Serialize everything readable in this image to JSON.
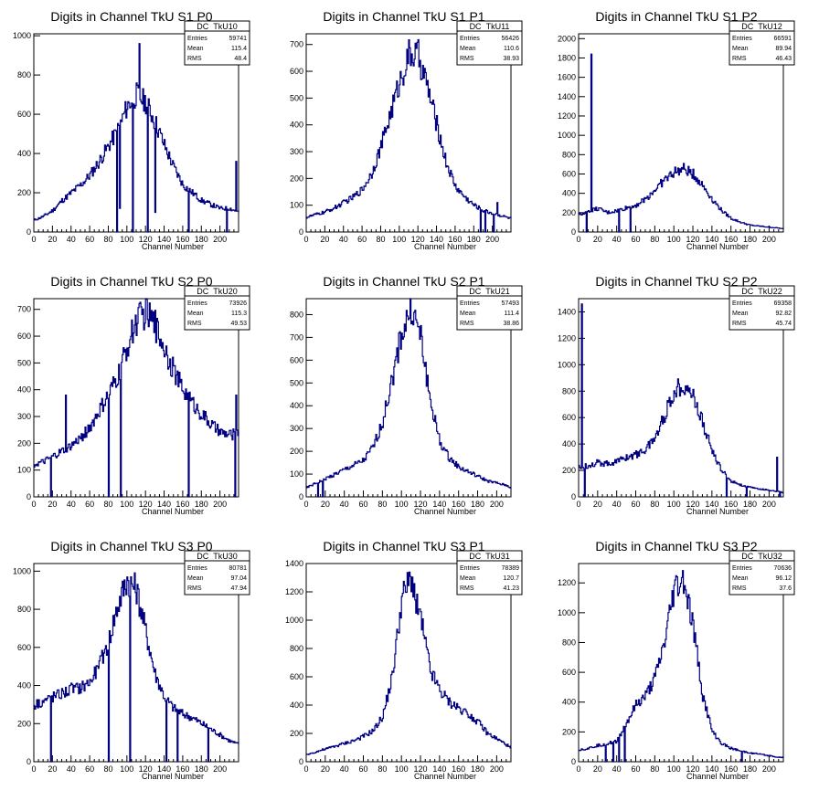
{
  "chart_data": [
    {
      "type": "bar",
      "title": "Digits in Channel TkU S1 P0",
      "xlabel": "Channel Number",
      "ylabel": "",
      "xlim": [
        0,
        220
      ],
      "ylim": [
        0,
        1010
      ],
      "xticks": [
        0,
        20,
        40,
        60,
        80,
        100,
        120,
        140,
        160,
        180,
        200
      ],
      "yticks": [
        200,
        400,
        600,
        800,
        1000
      ],
      "stats": {
        "name": "DC_TkU10",
        "entries": "59741",
        "mean": "115.4",
        "rms": "48.4"
      },
      "x": [
        0,
        10,
        20,
        30,
        40,
        50,
        60,
        70,
        80,
        90,
        100,
        110,
        120,
        130,
        140,
        150,
        160,
        170,
        180,
        190,
        200,
        210,
        220
      ],
      "values": [
        60,
        80,
        110,
        160,
        200,
        240,
        290,
        360,
        440,
        520,
        640,
        700,
        660,
        560,
        440,
        330,
        240,
        200,
        160,
        140,
        120,
        120,
        100
      ],
      "dips": [
        [
          89,
          0
        ],
        [
          92,
          120
        ],
        [
          106,
          0
        ],
        [
          113,
          960
        ],
        [
          122,
          0
        ],
        [
          130,
          100
        ],
        [
          166,
          0
        ],
        [
          207,
          0
        ],
        [
          217,
          360
        ]
      ]
    },
    {
      "type": "bar",
      "title": "Digits in Channel TkU S1 P1",
      "xlabel": "Channel Number",
      "ylabel": "",
      "xlim": [
        0,
        220
      ],
      "ylim": [
        0,
        740
      ],
      "xticks": [
        0,
        20,
        40,
        60,
        80,
        100,
        120,
        140,
        160,
        180,
        200
      ],
      "yticks": [
        100,
        200,
        300,
        400,
        500,
        600,
        700
      ],
      "stats": {
        "name": "DC_TkU11",
        "entries": "56426",
        "mean": "110.6",
        "rms": "38.93"
      },
      "x": [
        0,
        10,
        20,
        30,
        40,
        50,
        60,
        70,
        80,
        90,
        100,
        110,
        120,
        130,
        140,
        150,
        160,
        170,
        180,
        190,
        200,
        210,
        220
      ],
      "values": [
        55,
        65,
        75,
        90,
        110,
        130,
        160,
        220,
        320,
        440,
        560,
        660,
        660,
        540,
        400,
        260,
        170,
        130,
        100,
        80,
        70,
        60,
        50
      ],
      "dips": [
        [
          187,
          0
        ],
        [
          192,
          0
        ],
        [
          201,
          0
        ],
        [
          205,
          110
        ]
      ]
    },
    {
      "type": "bar",
      "title": "Digits in Channel TkU S1 P2",
      "xlabel": "Channel Number",
      "ylabel": "",
      "xlim": [
        0,
        215
      ],
      "ylim": [
        0,
        2050
      ],
      "xticks": [
        0,
        20,
        40,
        60,
        80,
        100,
        120,
        140,
        160,
        180,
        200
      ],
      "yticks": [
        200,
        400,
        600,
        800,
        1000,
        1200,
        1400,
        1600,
        1800,
        2000
      ],
      "stats": {
        "name": "DC_TkU12",
        "entries": "66591",
        "mean": "89.94",
        "rms": "46.43"
      },
      "x": [
        0,
        10,
        20,
        30,
        40,
        50,
        60,
        70,
        80,
        90,
        100,
        110,
        120,
        130,
        140,
        150,
        160,
        170,
        180,
        190,
        200,
        210,
        215
      ],
      "values": [
        180,
        220,
        240,
        200,
        220,
        250,
        280,
        340,
        440,
        540,
        620,
        650,
        600,
        480,
        340,
        220,
        140,
        100,
        70,
        60,
        50,
        40,
        30
      ],
      "dips": [
        [
          8,
          0
        ],
        [
          13,
          1840
        ],
        [
          42,
          0
        ],
        [
          54,
          0
        ]
      ]
    },
    {
      "type": "bar",
      "title": "Digits in Channel TkU S2 P0",
      "xlabel": "Channel Number",
      "ylabel": "",
      "xlim": [
        0,
        220
      ],
      "ylim": [
        0,
        740
      ],
      "xticks": [
        0,
        20,
        40,
        60,
        80,
        100,
        120,
        140,
        160,
        180,
        200
      ],
      "yticks": [
        100,
        200,
        300,
        400,
        500,
        600,
        700
      ],
      "stats": {
        "name": "DC_TkU20",
        "entries": "73926",
        "mean": "115.3",
        "rms": "49.53"
      },
      "x": [
        0,
        10,
        20,
        30,
        40,
        50,
        60,
        70,
        80,
        90,
        100,
        110,
        120,
        130,
        140,
        150,
        160,
        170,
        180,
        190,
        200,
        210,
        220
      ],
      "values": [
        120,
        130,
        150,
        170,
        190,
        220,
        260,
        320,
        380,
        450,
        560,
        660,
        690,
        640,
        560,
        470,
        400,
        350,
        310,
        270,
        240,
        230,
        240
      ],
      "dips": [
        [
          18,
          0
        ],
        [
          34,
          380
        ],
        [
          80,
          0
        ],
        [
          93,
          0
        ],
        [
          166,
          0
        ],
        [
          216,
          0
        ],
        [
          217,
          380
        ]
      ]
    },
    {
      "type": "bar",
      "title": "Digits in Channel TkU S2 P1",
      "xlabel": "Channel Number",
      "ylabel": "",
      "xlim": [
        0,
        215
      ],
      "ylim": [
        0,
        870
      ],
      "xticks": [
        0,
        20,
        40,
        60,
        80,
        100,
        120,
        140,
        160,
        180,
        200
      ],
      "yticks": [
        100,
        200,
        300,
        400,
        500,
        600,
        700,
        800
      ],
      "stats": {
        "name": "DC_TkU21",
        "entries": "57493",
        "mean": "111.4",
        "rms": "38.86"
      },
      "x": [
        0,
        10,
        20,
        30,
        40,
        50,
        60,
        70,
        80,
        90,
        100,
        110,
        120,
        130,
        140,
        150,
        160,
        170,
        180,
        190,
        200,
        210,
        215
      ],
      "values": [
        40,
        60,
        80,
        100,
        120,
        140,
        160,
        220,
        330,
        520,
        720,
        830,
        700,
        420,
        240,
        170,
        130,
        110,
        90,
        70,
        60,
        50,
        40
      ],
      "dips": [
        [
          12,
          0
        ],
        [
          17,
          0
        ]
      ]
    },
    {
      "type": "bar",
      "title": "Digits in Channel TkU S2 P2",
      "xlabel": "Channel Number",
      "ylabel": "",
      "xlim": [
        0,
        215
      ],
      "ylim": [
        0,
        1500
      ],
      "xticks": [
        0,
        20,
        40,
        60,
        80,
        100,
        120,
        140,
        160,
        180,
        200
      ],
      "yticks": [
        200,
        400,
        600,
        800,
        1000,
        1200,
        1400
      ],
      "stats": {
        "name": "DC_TkU22",
        "entries": "69358",
        "mean": "92.82",
        "rms": "45.74"
      },
      "x": [
        0,
        10,
        20,
        30,
        40,
        50,
        60,
        70,
        80,
        90,
        100,
        110,
        120,
        130,
        140,
        150,
        160,
        170,
        180,
        190,
        200,
        210,
        215
      ],
      "values": [
        220,
        240,
        260,
        250,
        270,
        300,
        320,
        360,
        450,
        620,
        800,
        860,
        760,
        560,
        340,
        200,
        120,
        90,
        70,
        60,
        50,
        40,
        30
      ],
      "dips": [
        [
          3,
          1460
        ],
        [
          6,
          0
        ],
        [
          155,
          0
        ],
        [
          176,
          0
        ],
        [
          208,
          300
        ],
        [
          211,
          0
        ]
      ]
    },
    {
      "type": "bar",
      "title": "Digits in Channel TkU S3 P0",
      "xlabel": "Channel Number",
      "ylabel": "",
      "xlim": [
        0,
        220
      ],
      "ylim": [
        0,
        1040
      ],
      "xticks": [
        0,
        20,
        40,
        60,
        80,
        100,
        120,
        140,
        160,
        180,
        200
      ],
      "yticks": [
        200,
        400,
        600,
        800,
        1000
      ],
      "stats": {
        "name": "DC_TkU30",
        "entries": "80781",
        "mean": "97.04",
        "rms": "47.94"
      },
      "x": [
        0,
        10,
        20,
        30,
        40,
        50,
        60,
        70,
        80,
        90,
        100,
        110,
        120,
        130,
        140,
        150,
        160,
        170,
        180,
        190,
        200,
        210,
        220
      ],
      "values": [
        300,
        320,
        340,
        360,
        380,
        390,
        420,
        500,
        640,
        820,
        960,
        900,
        680,
        460,
        340,
        280,
        250,
        230,
        200,
        170,
        140,
        110,
        90
      ],
      "dips": [
        [
          18,
          0
        ],
        [
          80,
          0
        ],
        [
          103,
          0
        ],
        [
          142,
          0
        ],
        [
          154,
          0
        ],
        [
          187,
          0
        ]
      ]
    },
    {
      "type": "bar",
      "title": "Digits in Channel TkU S3 P1",
      "xlabel": "Channel Number",
      "ylabel": "",
      "xlim": [
        0,
        215
      ],
      "ylim": [
        0,
        1400
      ],
      "xticks": [
        0,
        20,
        40,
        60,
        80,
        100,
        120,
        140,
        160,
        180,
        200
      ],
      "yticks": [
        200,
        400,
        600,
        800,
        1000,
        1200,
        1400
      ],
      "stats": {
        "name": "DC_TkU31",
        "entries": "78389",
        "mean": "120.7",
        "rms": "41.23"
      },
      "x": [
        0,
        10,
        20,
        30,
        40,
        50,
        60,
        70,
        80,
        90,
        100,
        110,
        120,
        130,
        140,
        150,
        160,
        170,
        180,
        190,
        200,
        210,
        215
      ],
      "values": [
        50,
        70,
        90,
        110,
        130,
        150,
        180,
        220,
        320,
        600,
        1150,
        1300,
        1000,
        640,
        500,
        420,
        380,
        340,
        280,
        200,
        160,
        120,
        90
      ],
      "dips": []
    },
    {
      "type": "bar",
      "title": "Digits in Channel TkU S3 P2",
      "xlabel": "Channel Number",
      "ylabel": "",
      "xlim": [
        0,
        215
      ],
      "ylim": [
        0,
        1330
      ],
      "xticks": [
        0,
        20,
        40,
        60,
        80,
        100,
        120,
        140,
        160,
        180,
        200
      ],
      "yticks": [
        200,
        400,
        600,
        800,
        1000,
        1200
      ],
      "stats": {
        "name": "DC_TkU32",
        "entries": "70636",
        "mean": "96.12",
        "rms": "37.6"
      },
      "x": [
        0,
        10,
        20,
        30,
        40,
        50,
        60,
        70,
        80,
        90,
        100,
        110,
        120,
        130,
        140,
        150,
        160,
        170,
        180,
        190,
        200,
        210,
        215
      ],
      "values": [
        80,
        90,
        110,
        120,
        140,
        260,
        380,
        440,
        560,
        800,
        1160,
        1220,
        900,
        440,
        200,
        120,
        90,
        70,
        60,
        50,
        40,
        30,
        30
      ],
      "dips": [
        [
          28,
          0
        ],
        [
          36,
          0
        ],
        [
          42,
          0
        ],
        [
          48,
          0
        ],
        [
          171,
          0
        ]
      ]
    }
  ]
}
